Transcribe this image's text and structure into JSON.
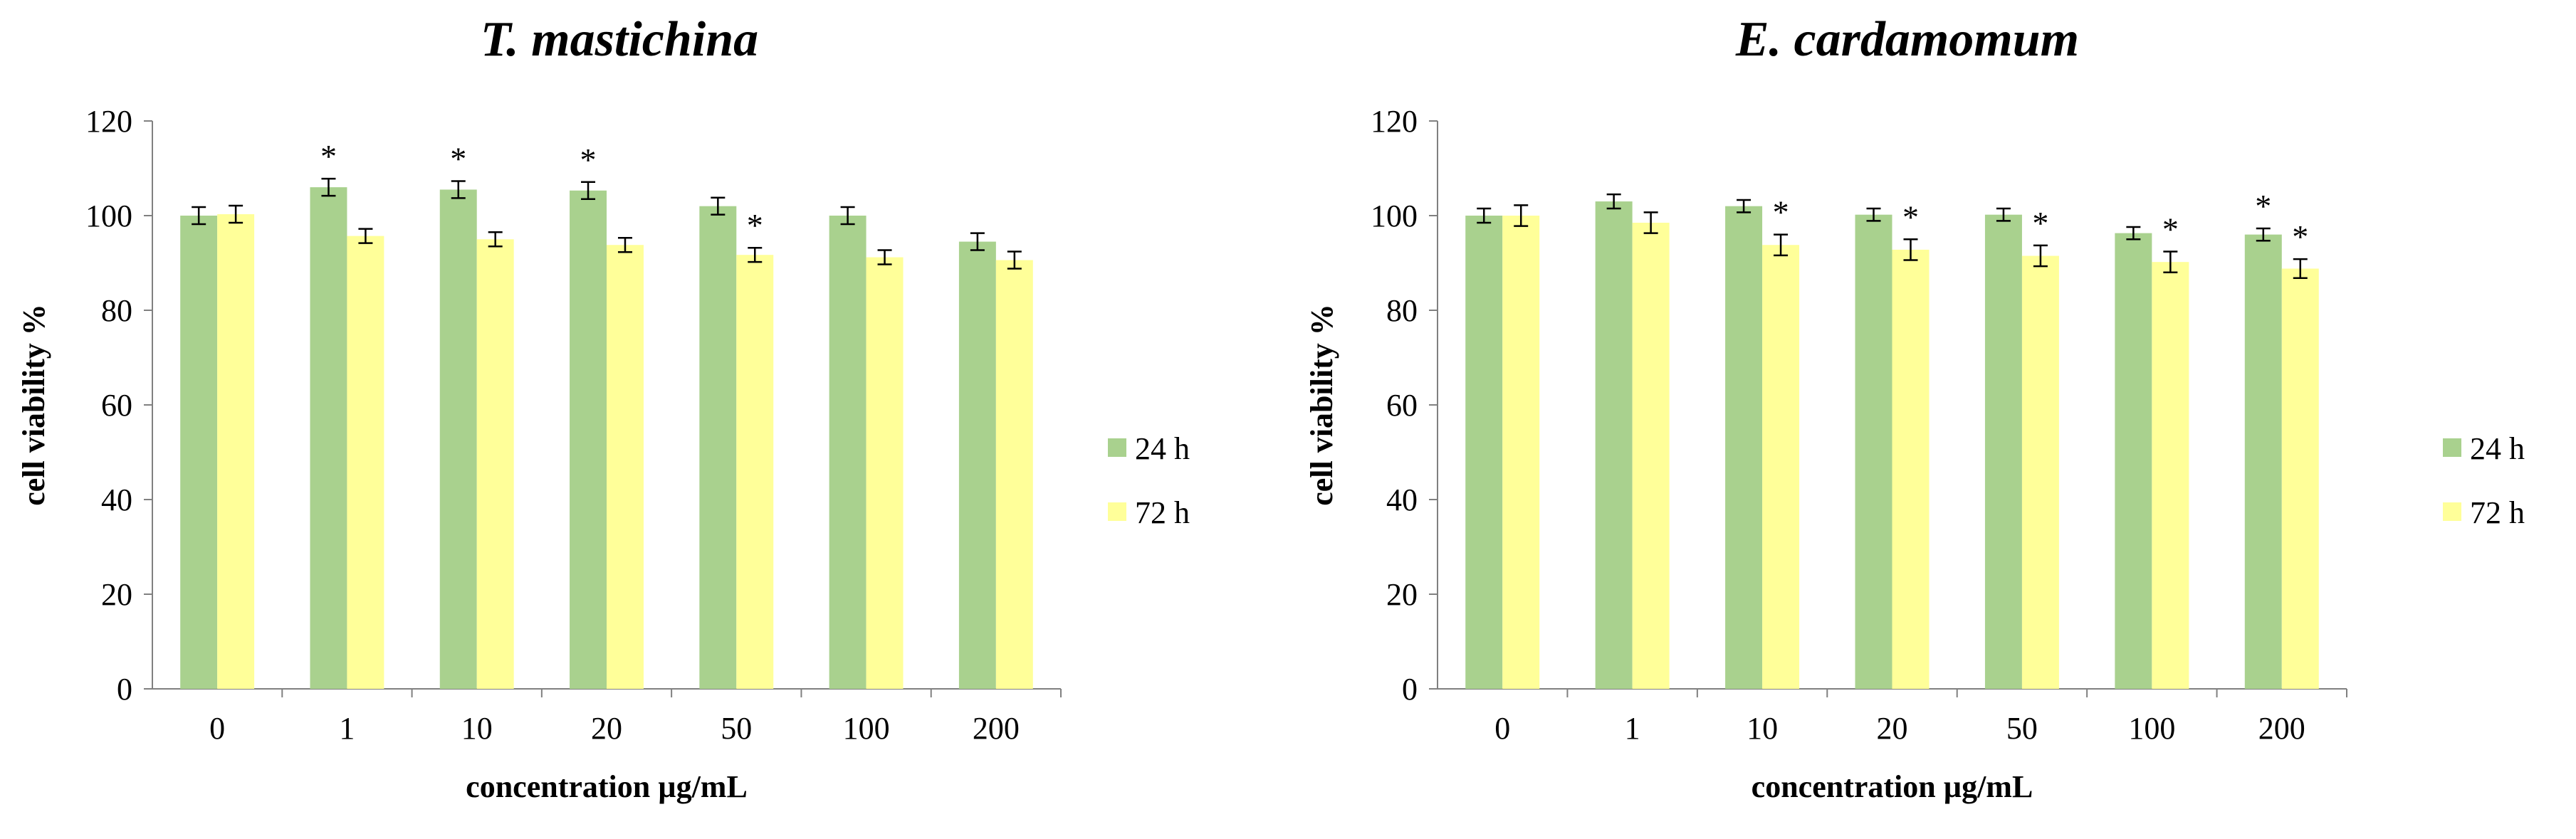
{
  "chart_data": [
    {
      "type": "bar",
      "title": "T. mastichina",
      "xlabel": "concentration µg/mL",
      "ylabel": "cell viability %",
      "categories": [
        "0",
        "1",
        "10",
        "20",
        "50",
        "100",
        "200"
      ],
      "ylim": [
        0,
        120
      ],
      "yticks": [
        0,
        20,
        40,
        60,
        80,
        100,
        120
      ],
      "grid": false,
      "legend_position": "right",
      "series": [
        {
          "name": "24 h",
          "color": "#a9d18e",
          "values": [
            100,
            106,
            105.5,
            105.3,
            102,
            100,
            94.5
          ],
          "errors": [
            1.8,
            1.8,
            1.8,
            1.8,
            1.8,
            1.8,
            1.8
          ],
          "significance": [
            "",
            "*",
            "*",
            "*",
            "",
            "",
            ""
          ]
        },
        {
          "name": "72 h",
          "color": "#ffff99",
          "values": [
            100.3,
            95.7,
            95,
            93.8,
            91.7,
            91.2,
            90.6
          ],
          "errors": [
            1.8,
            1.5,
            1.5,
            1.5,
            1.5,
            1.5,
            1.8
          ],
          "significance": [
            "",
            "",
            "",
            "",
            "*",
            "",
            ""
          ]
        }
      ]
    },
    {
      "type": "bar",
      "title": "E. cardamomum",
      "xlabel": "concentration µg/mL",
      "ylabel": "cell viability %",
      "categories": [
        "0",
        "1",
        "10",
        "20",
        "50",
        "100",
        "200"
      ],
      "ylim": [
        0,
        120
      ],
      "yticks": [
        0,
        20,
        40,
        60,
        80,
        100,
        120
      ],
      "grid": false,
      "legend_position": "right",
      "series": [
        {
          "name": "24 h",
          "color": "#a9d18e",
          "values": [
            100,
            103,
            102,
            100.2,
            100.2,
            96.3,
            96
          ],
          "errors": [
            1.5,
            1.5,
            1.3,
            1.3,
            1.3,
            1.3,
            1.3
          ],
          "significance": [
            "",
            "",
            "",
            "",
            "",
            "",
            "*"
          ]
        },
        {
          "name": "72 h",
          "color": "#ffff99",
          "values": [
            100,
            98.5,
            93.8,
            92.8,
            91.5,
            90.2,
            88.8
          ],
          "errors": [
            2.2,
            2.2,
            2.2,
            2.2,
            2.2,
            2.2,
            2.0
          ],
          "significance": [
            "",
            "",
            "*",
            "*",
            "*",
            "*",
            "*"
          ]
        }
      ]
    }
  ]
}
